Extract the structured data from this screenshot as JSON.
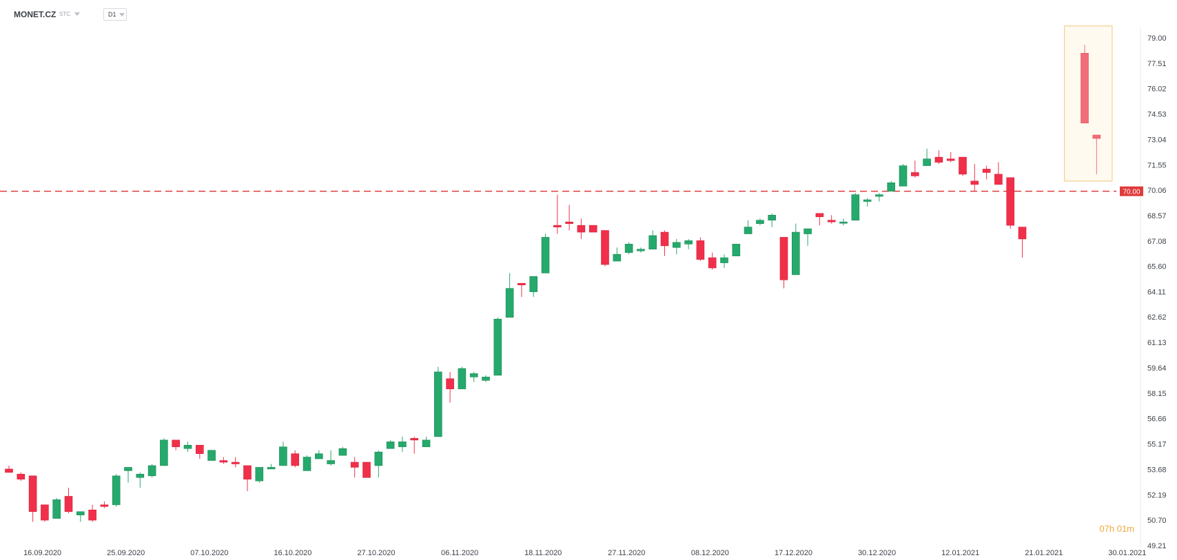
{
  "toolbar": {
    "symbol": "MONET.CZ",
    "asset_type": "STC",
    "timeframe": "D1"
  },
  "countdown": "07h 01m",
  "colors": {
    "up": "#26a96c",
    "down": "#f0304a",
    "level_line": "#e03a3a",
    "highlight_border": "#f5c57a",
    "highlight_fill": "#fffaf0"
  },
  "chart_data": {
    "type": "candlestick",
    "y_ticks": [
      "79.00",
      "77.51",
      "76.02",
      "74.53",
      "73.04",
      "71.55",
      "70.06",
      "68.57",
      "67.08",
      "65.60",
      "64.11",
      "62.62",
      "61.13",
      "59.64",
      "58.15",
      "56.66",
      "55.17",
      "53.68",
      "52.19",
      "50.70",
      "49.21"
    ],
    "ylim": [
      49.21,
      79.0
    ],
    "x_ticks": [
      {
        "label": "16.09.2020",
        "index": 2
      },
      {
        "label": "25.09.2020",
        "index": 9
      },
      {
        "label": "07.10.2020",
        "index": 16
      },
      {
        "label": "16.10.2020",
        "index": 23
      },
      {
        "label": "27.10.2020",
        "index": 30
      },
      {
        "label": "06.11.2020",
        "index": 37
      },
      {
        "label": "18.11.2020",
        "index": 44
      },
      {
        "label": "27.11.2020",
        "index": 51
      },
      {
        "label": "08.12.2020",
        "index": 58
      },
      {
        "label": "17.12.2020",
        "index": 65
      },
      {
        "label": "30.12.2020",
        "index": 72
      },
      {
        "label": "12.01.2021",
        "index": 79
      },
      {
        "label": "21.01.2021",
        "index": 86
      },
      {
        "label": "30.01.2021",
        "index": 93
      }
    ],
    "level": {
      "value": 70.0,
      "label": "70.00"
    },
    "candles": [
      {
        "o": 53.7,
        "h": 53.9,
        "l": 53.5,
        "c": 53.5
      },
      {
        "o": 53.4,
        "h": 53.5,
        "l": 53.0,
        "c": 53.1
      },
      {
        "o": 53.3,
        "h": 53.3,
        "l": 50.6,
        "c": 51.2
      },
      {
        "o": 51.6,
        "h": 51.6,
        "l": 50.6,
        "c": 50.7
      },
      {
        "o": 50.8,
        "h": 52.0,
        "l": 50.8,
        "c": 51.9
      },
      {
        "o": 52.1,
        "h": 52.6,
        "l": 51.1,
        "c": 51.2
      },
      {
        "o": 51.0,
        "h": 51.1,
        "l": 50.6,
        "c": 51.2
      },
      {
        "o": 51.3,
        "h": 51.6,
        "l": 50.6,
        "c": 50.7
      },
      {
        "o": 51.6,
        "h": 51.8,
        "l": 51.4,
        "c": 51.5
      },
      {
        "o": 51.6,
        "h": 53.4,
        "l": 51.5,
        "c": 53.3
      },
      {
        "o": 53.6,
        "h": 53.8,
        "l": 52.9,
        "c": 53.8
      },
      {
        "o": 53.2,
        "h": 53.5,
        "l": 52.6,
        "c": 53.4
      },
      {
        "o": 53.3,
        "h": 54.0,
        "l": 53.2,
        "c": 53.9
      },
      {
        "o": 53.9,
        "h": 55.5,
        "l": 53.9,
        "c": 55.4
      },
      {
        "o": 55.4,
        "h": 55.4,
        "l": 54.8,
        "c": 55.0
      },
      {
        "o": 54.9,
        "h": 55.3,
        "l": 54.7,
        "c": 55.1
      },
      {
        "o": 55.1,
        "h": 55.1,
        "l": 54.3,
        "c": 54.6
      },
      {
        "o": 54.2,
        "h": 54.8,
        "l": 54.2,
        "c": 54.8
      },
      {
        "o": 54.2,
        "h": 54.4,
        "l": 54.0,
        "c": 54.1
      },
      {
        "o": 54.1,
        "h": 54.4,
        "l": 53.8,
        "c": 54.0
      },
      {
        "o": 53.9,
        "h": 53.9,
        "l": 52.4,
        "c": 53.1
      },
      {
        "o": 53.0,
        "h": 53.8,
        "l": 52.9,
        "c": 53.8
      },
      {
        "o": 53.7,
        "h": 54.0,
        "l": 53.7,
        "c": 53.8
      },
      {
        "o": 53.9,
        "h": 55.3,
        "l": 53.9,
        "c": 55.0
      },
      {
        "o": 54.6,
        "h": 54.8,
        "l": 53.8,
        "c": 53.9
      },
      {
        "o": 53.6,
        "h": 54.5,
        "l": 53.6,
        "c": 54.4
      },
      {
        "o": 54.3,
        "h": 54.8,
        "l": 54.3,
        "c": 54.6
      },
      {
        "o": 54.0,
        "h": 54.8,
        "l": 53.9,
        "c": 54.2
      },
      {
        "o": 54.5,
        "h": 55.0,
        "l": 54.5,
        "c": 54.9
      },
      {
        "o": 54.1,
        "h": 54.4,
        "l": 53.2,
        "c": 53.8
      },
      {
        "o": 54.1,
        "h": 54.1,
        "l": 53.2,
        "c": 53.2
      },
      {
        "o": 53.9,
        "h": 54.8,
        "l": 53.2,
        "c": 54.7
      },
      {
        "o": 54.9,
        "h": 55.4,
        "l": 54.9,
        "c": 55.3
      },
      {
        "o": 55.0,
        "h": 55.6,
        "l": 54.7,
        "c": 55.3
      },
      {
        "o": 55.5,
        "h": 55.6,
        "l": 54.6,
        "c": 55.4
      },
      {
        "o": 55.0,
        "h": 55.6,
        "l": 55.0,
        "c": 55.4
      },
      {
        "o": 55.6,
        "h": 59.7,
        "l": 55.6,
        "c": 59.4
      },
      {
        "o": 59.0,
        "h": 59.4,
        "l": 57.6,
        "c": 58.4
      },
      {
        "o": 58.4,
        "h": 59.7,
        "l": 58.4,
        "c": 59.6
      },
      {
        "o": 59.1,
        "h": 59.4,
        "l": 58.8,
        "c": 59.3
      },
      {
        "o": 58.9,
        "h": 59.2,
        "l": 58.8,
        "c": 59.1
      },
      {
        "o": 59.2,
        "h": 62.6,
        "l": 59.2,
        "c": 62.5
      },
      {
        "o": 62.6,
        "h": 65.2,
        "l": 62.6,
        "c": 64.3
      },
      {
        "o": 64.6,
        "h": 64.6,
        "l": 63.8,
        "c": 64.5
      },
      {
        "o": 64.1,
        "h": 65.0,
        "l": 63.8,
        "c": 65.0
      },
      {
        "o": 65.2,
        "h": 67.5,
        "l": 65.2,
        "c": 67.3
      },
      {
        "o": 68.0,
        "h": 69.8,
        "l": 67.5,
        "c": 67.9
      },
      {
        "o": 68.2,
        "h": 69.2,
        "l": 67.7,
        "c": 68.1
      },
      {
        "o": 68.0,
        "h": 68.4,
        "l": 67.2,
        "c": 67.6
      },
      {
        "o": 68.0,
        "h": 68.0,
        "l": 67.6,
        "c": 67.6
      },
      {
        "o": 67.7,
        "h": 67.7,
        "l": 65.6,
        "c": 65.7
      },
      {
        "o": 65.9,
        "h": 66.7,
        "l": 65.9,
        "c": 66.3
      },
      {
        "o": 66.4,
        "h": 67.0,
        "l": 66.3,
        "c": 66.9
      },
      {
        "o": 66.5,
        "h": 66.7,
        "l": 66.4,
        "c": 66.6
      },
      {
        "o": 66.6,
        "h": 67.7,
        "l": 66.6,
        "c": 67.4
      },
      {
        "o": 67.6,
        "h": 67.7,
        "l": 66.2,
        "c": 66.8
      },
      {
        "o": 66.7,
        "h": 67.2,
        "l": 66.3,
        "c": 67.0
      },
      {
        "o": 66.9,
        "h": 67.2,
        "l": 66.6,
        "c": 67.1
      },
      {
        "o": 67.1,
        "h": 67.3,
        "l": 65.9,
        "c": 66.0
      },
      {
        "o": 66.1,
        "h": 66.4,
        "l": 65.4,
        "c": 65.5
      },
      {
        "o": 65.8,
        "h": 66.3,
        "l": 65.5,
        "c": 66.1
      },
      {
        "o": 66.2,
        "h": 66.8,
        "l": 66.2,
        "c": 66.9
      },
      {
        "o": 67.5,
        "h": 68.3,
        "l": 67.5,
        "c": 67.9
      },
      {
        "o": 68.1,
        "h": 68.4,
        "l": 68.0,
        "c": 68.3
      },
      {
        "o": 68.3,
        "h": 68.7,
        "l": 67.9,
        "c": 68.6
      },
      {
        "o": 67.3,
        "h": 67.3,
        "l": 64.3,
        "c": 64.8
      },
      {
        "o": 65.1,
        "h": 68.1,
        "l": 65.1,
        "c": 67.6
      },
      {
        "o": 67.5,
        "h": 67.8,
        "l": 66.8,
        "c": 67.8
      },
      {
        "o": 68.7,
        "h": 68.7,
        "l": 68.0,
        "c": 68.5
      },
      {
        "o": 68.3,
        "h": 68.6,
        "l": 68.1,
        "c": 68.2
      },
      {
        "o": 68.2,
        "h": 68.4,
        "l": 68.0,
        "c": 68.2
      },
      {
        "o": 68.3,
        "h": 69.9,
        "l": 68.3,
        "c": 69.8
      },
      {
        "o": 69.4,
        "h": 69.6,
        "l": 69.1,
        "c": 69.5
      },
      {
        "o": 69.7,
        "h": 69.9,
        "l": 69.4,
        "c": 69.8
      },
      {
        "o": 70.0,
        "h": 70.6,
        "l": 70.0,
        "c": 70.5
      },
      {
        "o": 70.3,
        "h": 71.6,
        "l": 70.3,
        "c": 71.5
      },
      {
        "o": 71.1,
        "h": 71.8,
        "l": 70.8,
        "c": 70.9
      },
      {
        "o": 71.5,
        "h": 72.5,
        "l": 71.5,
        "c": 71.9
      },
      {
        "o": 72.0,
        "h": 72.4,
        "l": 71.6,
        "c": 71.7
      },
      {
        "o": 71.9,
        "h": 72.3,
        "l": 71.7,
        "c": 71.8
      },
      {
        "o": 72.0,
        "h": 72.0,
        "l": 70.9,
        "c": 71.0
      },
      {
        "o": 70.6,
        "h": 71.6,
        "l": 70.0,
        "c": 70.4
      },
      {
        "o": 71.3,
        "h": 71.5,
        "l": 70.7,
        "c": 71.1
      },
      {
        "o": 71.0,
        "h": 71.7,
        "l": 70.4,
        "c": 70.4
      },
      {
        "o": 70.8,
        "h": 70.8,
        "l": 67.8,
        "c": 68.0
      },
      {
        "o": 67.9,
        "h": 67.9,
        "l": 66.1,
        "c": 67.2
      }
    ],
    "projection": {
      "box": {
        "from_index": 89,
        "to_index": 93,
        "high": 79.7,
        "low": 70.6
      },
      "candles": [
        {
          "index": 90,
          "o": 78.1,
          "h": 78.6,
          "l": 74.0,
          "c": 74.0
        },
        {
          "index": 91,
          "o": 73.3,
          "h": 73.3,
          "l": 71.0,
          "c": 73.1
        }
      ]
    }
  }
}
